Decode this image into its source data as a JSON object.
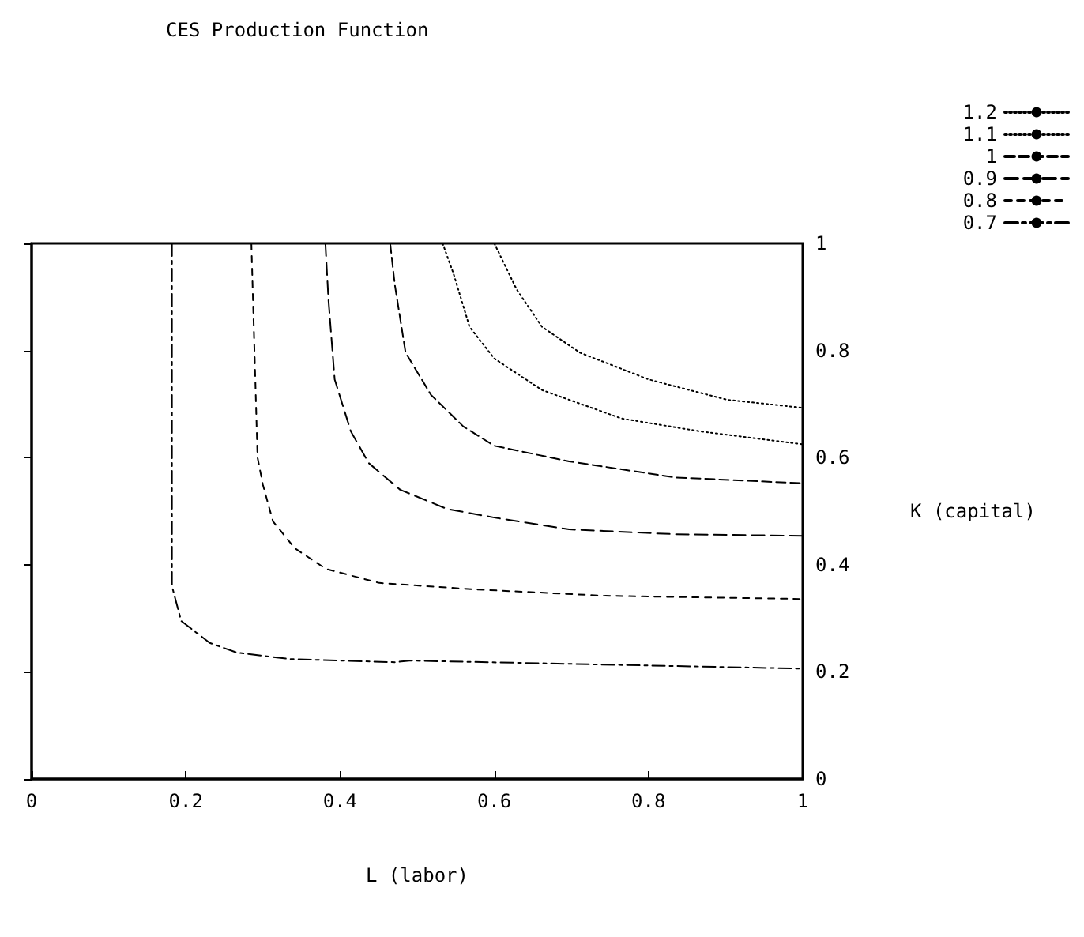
{
  "chart_data": {
    "type": "line",
    "title": "CES Production Function",
    "xlabel": "L (labor)",
    "ylabel": "K (capital)",
    "xlim": [
      0,
      1
    ],
    "xticks": [
      0,
      0.2,
      0.4,
      0.6,
      0.8,
      1
    ],
    "ylim": [
      0,
      1
    ],
    "yticks": [
      0,
      0.2,
      0.4,
      0.6,
      0.8,
      1
    ],
    "grid": false,
    "legend": "top right",
    "marker": "none",
    "series": [
      {
        "name": "1.2",
        "color": "#000000",
        "line_style": "dotted",
        "x": [
          0.6,
          0.629,
          0.662,
          0.711,
          0.8,
          0.902,
          1
        ],
        "values": [
          1,
          0.914,
          0.844,
          0.796,
          0.746,
          0.708,
          0.693
        ]
      },
      {
        "name": "1.1",
        "color": "#000000",
        "line_style": "dotted",
        "x": [
          0.533,
          0.547,
          0.568,
          0.6,
          0.662,
          0.765,
          0.867,
          1
        ],
        "values": [
          1,
          0.944,
          0.844,
          0.785,
          0.726,
          0.673,
          0.649,
          0.625
        ]
      },
      {
        "name": "1",
        "color": "#000000",
        "line_style": "dashed",
        "x": [
          0.465,
          0.471,
          0.485,
          0.518,
          0.56,
          0.6,
          0.697,
          0.834,
          1
        ],
        "values": [
          1,
          0.923,
          0.796,
          0.717,
          0.658,
          0.622,
          0.593,
          0.563,
          0.552
        ]
      },
      {
        "name": "0.9",
        "color": "#000000",
        "line_style": "dashed",
        "x": [
          0.381,
          0.385,
          0.393,
          0.414,
          0.437,
          0.478,
          0.539,
          0.6,
          0.697,
          0.834,
          1
        ],
        "values": [
          1,
          0.894,
          0.746,
          0.649,
          0.59,
          0.54,
          0.504,
          0.488,
          0.466,
          0.457,
          0.454
        ]
      },
      {
        "name": "0.8",
        "color": "#000000",
        "line_style": "dashed",
        "x": [
          0.285,
          0.293,
          0.3,
          0.313,
          0.341,
          0.382,
          0.451,
          0.574,
          0.744,
          1
        ],
        "values": [
          1,
          0.6,
          0.549,
          0.481,
          0.431,
          0.392,
          0.366,
          0.354,
          0.342,
          0.336
        ]
      },
      {
        "name": "0.7",
        "color": "#000000",
        "line_style": "dashed",
        "x": [
          0.182,
          0.182,
          0.194,
          0.231,
          0.266,
          0.334,
          0.471,
          0.49,
          1
        ],
        "values": [
          1,
          0.36,
          0.295,
          0.254,
          0.236,
          0.224,
          0.218,
          0.221,
          0.206
        ]
      }
    ]
  }
}
